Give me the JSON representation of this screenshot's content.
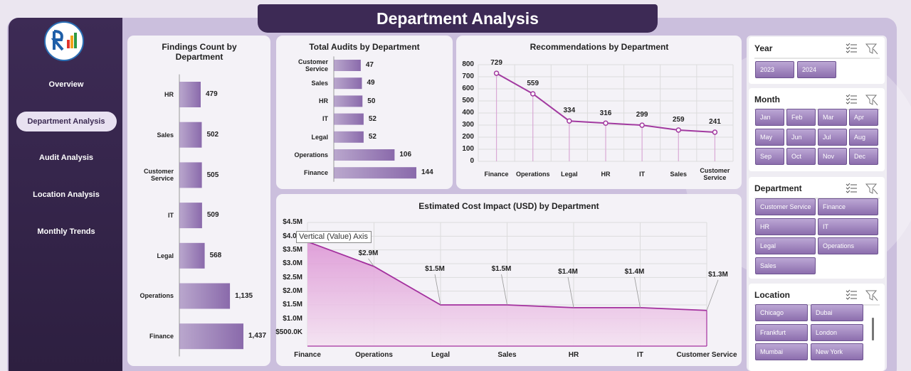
{
  "header": {
    "title": "Department Analysis"
  },
  "nav": [
    "Overview",
    "Department Analysis",
    "Audit Analysis",
    "Location Analysis",
    "Monthly Trends"
  ],
  "chart_data": [
    {
      "type": "bar",
      "orientation": "horizontal",
      "title": "Findings Count by Department",
      "categories": [
        "HR",
        "Sales",
        "Customer Service",
        "IT",
        "Legal",
        "Operations",
        "Finance"
      ],
      "values": [
        479,
        502,
        505,
        509,
        568,
        1135,
        1437
      ],
      "value_labels": [
        "479",
        "502",
        "505",
        "509",
        "568",
        "1,135",
        "1,437"
      ],
      "color": "#8a6aab"
    },
    {
      "type": "bar",
      "orientation": "horizontal",
      "title": "Total Audits by Department",
      "categories": [
        "Customer Service",
        "Sales",
        "HR",
        "IT",
        "Legal",
        "Operations",
        "Finance"
      ],
      "values": [
        47,
        49,
        50,
        52,
        52,
        106,
        144
      ],
      "color": "#8a6aab"
    },
    {
      "type": "line",
      "title": "Recommendations by Department",
      "categories": [
        "Finance",
        "Operations",
        "Legal",
        "HR",
        "IT",
        "Sales",
        "Customer Service"
      ],
      "values": [
        729,
        559,
        334,
        316,
        299,
        259,
        241
      ],
      "color": "#a23aa0",
      "ylim": [
        0,
        800
      ],
      "yticks": [
        0,
        100,
        200,
        300,
        400,
        500,
        600,
        700,
        800
      ],
      "grid": true
    },
    {
      "type": "area",
      "title": "Estimated Cost Impact (USD) by Department",
      "categories": [
        "Finance",
        "Operations",
        "Legal",
        "Sales",
        "HR",
        "IT",
        "Customer Service"
      ],
      "values": [
        3800000,
        2900000,
        1500000,
        1500000,
        1400000,
        1400000,
        1300000
      ],
      "value_labels": [
        null,
        "$2.9M",
        "$1.5M",
        "$1.5M",
        "$1.4M",
        "$1.4M",
        "$1.3M"
      ],
      "color": "#a3309e",
      "ylim": [
        0,
        4500000
      ],
      "yticks": [
        {
          "value": 500000,
          "label": "$500.0K"
        },
        {
          "value": 1000000,
          "label": "$1.0M"
        },
        {
          "value": 1500000,
          "label": "$1.5M"
        },
        {
          "value": 2000000,
          "label": "$2.0M"
        },
        {
          "value": 2500000,
          "label": "$2.5M"
        },
        {
          "value": 3000000,
          "label": "$3.0M"
        },
        {
          "value": 3500000,
          "label": "$3.5M"
        },
        {
          "value": 4000000,
          "label": "$4.0M"
        },
        {
          "value": 4500000,
          "label": "$4.5M"
        }
      ],
      "grid": true,
      "tooltip": "Vertical (Value) Axis"
    }
  ],
  "slicers": [
    {
      "title": "Year",
      "items": [
        "2023",
        "2024"
      ]
    },
    {
      "title": "Month",
      "items": [
        "Jan",
        "Feb",
        "Mar",
        "Apr",
        "May",
        "Jun",
        "Jul",
        "Aug",
        "Sep",
        "Oct",
        "Nov",
        "Dec"
      ]
    },
    {
      "title": "Department",
      "items": [
        "Customer Service",
        "Finance",
        "HR",
        "IT",
        "Legal",
        "Operations",
        "Sales"
      ]
    },
    {
      "title": "Location",
      "items": [
        "Chicago",
        "Dubai",
        "Frankfurt",
        "London",
        "Mumbai",
        "New York"
      ]
    }
  ]
}
